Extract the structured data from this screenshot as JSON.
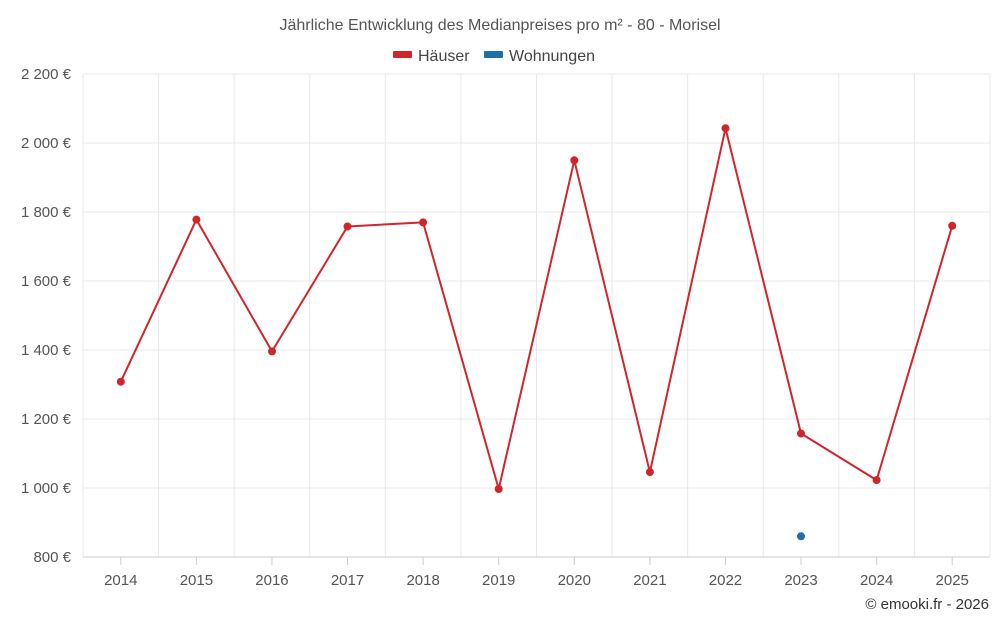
{
  "chart_data": {
    "type": "line",
    "title": "Jährliche Entwicklung des Medianpreises pro m² - 80 - Morisel",
    "categories": [
      "2014",
      "2015",
      "2016",
      "2017",
      "2018",
      "2019",
      "2020",
      "2021",
      "2022",
      "2023",
      "2024",
      "2025"
    ],
    "series": [
      {
        "name": "Häuser",
        "color": "#d0262b",
        "values": [
          1308,
          1778,
          1396,
          1758,
          1770,
          997,
          1950,
          1046,
          2043,
          1158,
          1023,
          1760
        ]
      },
      {
        "name": "Wohnungen",
        "color": "#1f6fa8",
        "values": [
          null,
          null,
          null,
          null,
          null,
          null,
          null,
          null,
          null,
          860,
          null,
          null
        ]
      }
    ],
    "ylim": [
      800,
      2200
    ],
    "yticks": [
      800,
      1000,
      1200,
      1400,
      1600,
      1800,
      2000,
      2200
    ],
    "ytick_labels": [
      "800 €",
      "1 000 €",
      "1 200 €",
      "1 400 €",
      "1 600 €",
      "1 800 €",
      "2 000 €",
      "2 200 €"
    ],
    "xlabel": "",
    "ylabel": "",
    "grid": true,
    "legend_position": "top-center",
    "credit": "© emooki.fr - 2026"
  }
}
